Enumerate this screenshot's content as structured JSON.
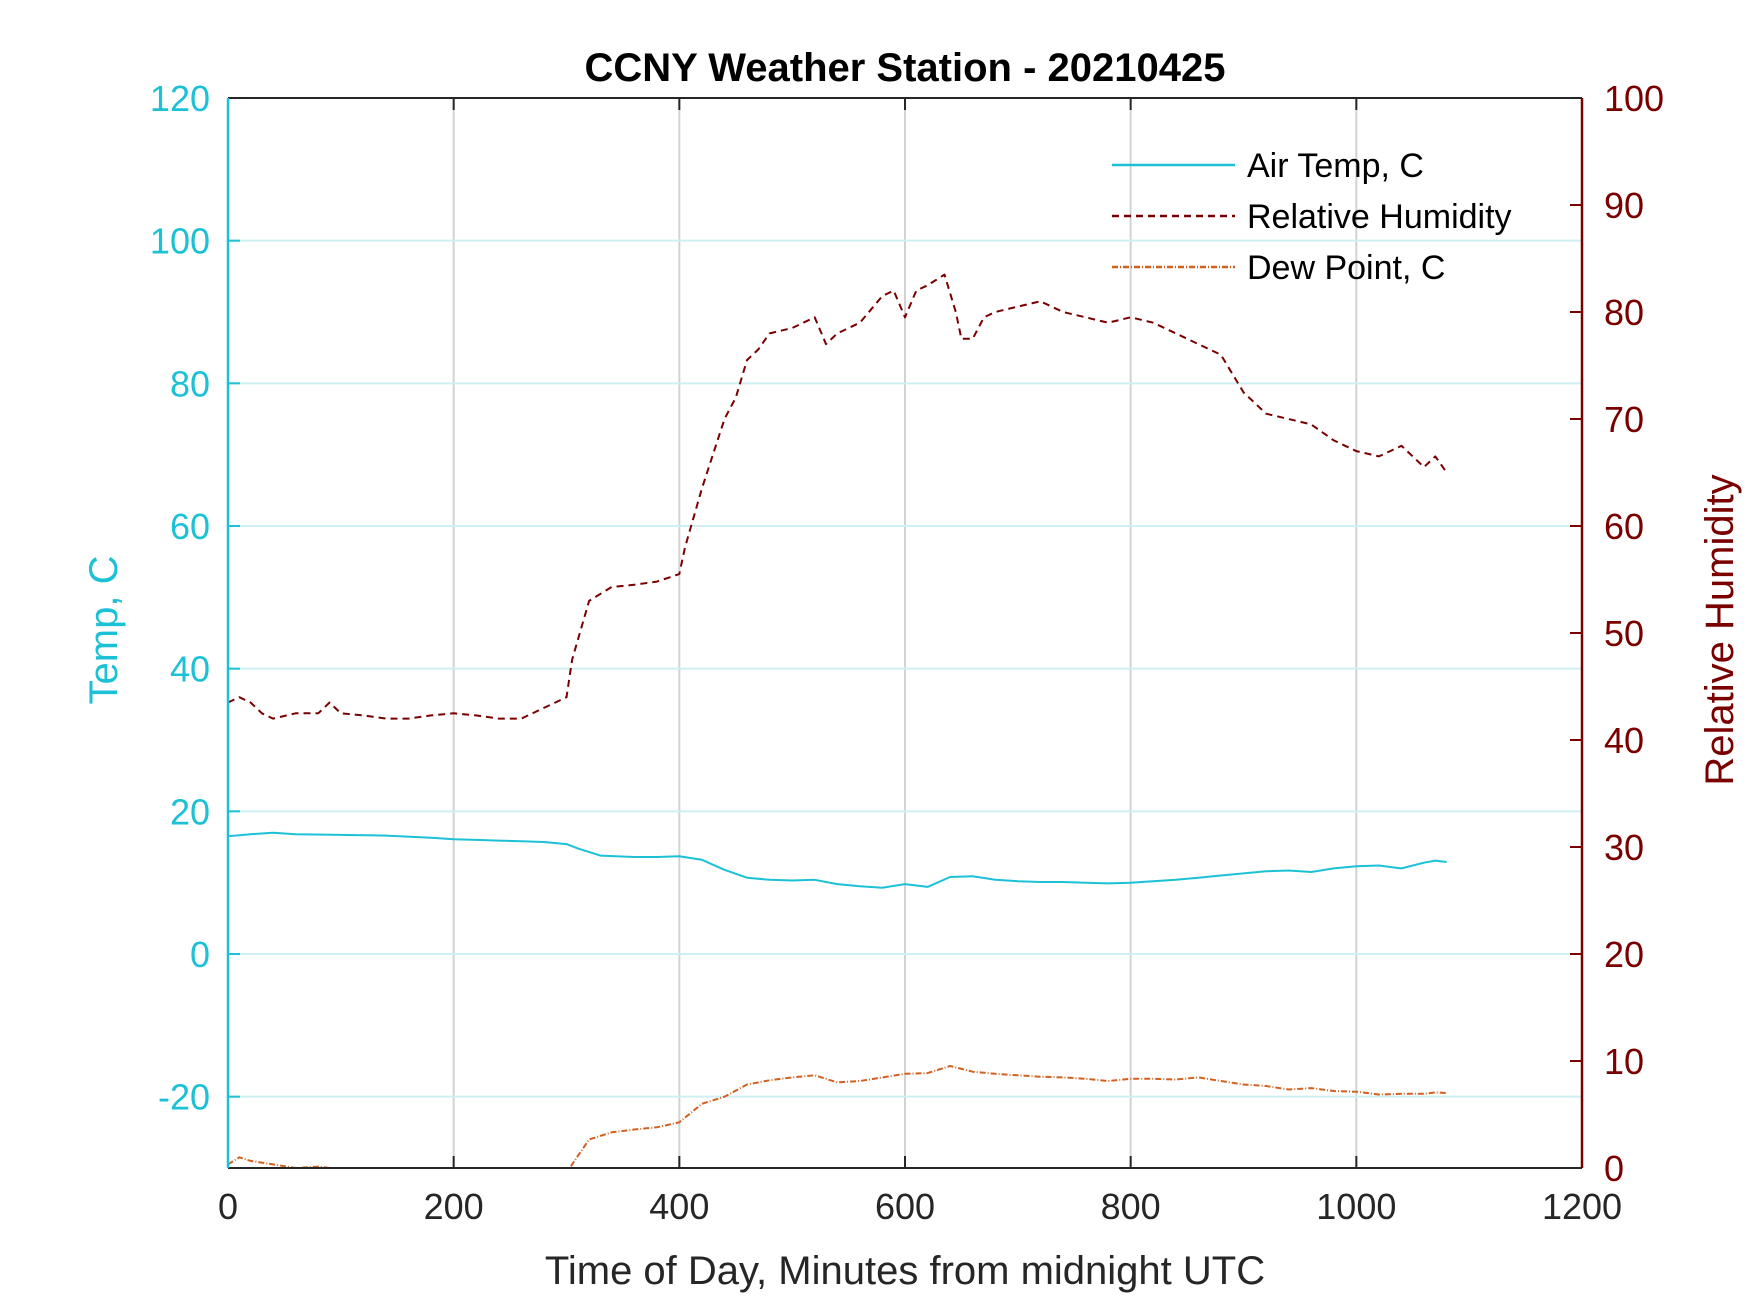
{
  "chart_data": {
    "type": "line",
    "title": "CCNY Weather Station - 20210425",
    "xlabel": "Time of Day, Minutes from midnight UTC",
    "ylabel_left": "Temp, C",
    "ylabel_right": "Relative Humidity",
    "xlim": [
      0,
      1200
    ],
    "ylim_left": [
      -30,
      120
    ],
    "ylim_right": [
      0,
      100
    ],
    "xticks": [
      "0",
      "200",
      "400",
      "600",
      "800",
      "1000",
      "1200"
    ],
    "yticks_left": [
      "120",
      "100",
      "80",
      "60",
      "40",
      "20",
      "0",
      "-20"
    ],
    "yticks_right": [
      "100",
      "90",
      "80",
      "70",
      "60",
      "50",
      "40",
      "30",
      "20",
      "10",
      "0"
    ],
    "grid": true,
    "legend_position": "top-right",
    "colors": {
      "left_axis": "#1cc1d6",
      "right_axis": "#7a0000",
      "air_temp": "#1cc1d6",
      "humidity": "#7a0000",
      "dew_point": "#d2611f",
      "grid": "#d3d3d3",
      "hgrid": "#cfeff4"
    },
    "series": [
      {
        "name": "Air Temp, C",
        "axis": "left",
        "style": "solid",
        "x": [
          0,
          20,
          40,
          60,
          100,
          140,
          180,
          200,
          220,
          240,
          260,
          280,
          300,
          310,
          330,
          360,
          380,
          400,
          420,
          440,
          460,
          480,
          500,
          520,
          540,
          560,
          580,
          600,
          620,
          640,
          660,
          680,
          700,
          720,
          740,
          760,
          780,
          800,
          820,
          840,
          860,
          880,
          900,
          920,
          940,
          960,
          980,
          1000,
          1020,
          1040,
          1060,
          1070,
          1080
        ],
        "y": [
          16.5,
          16.8,
          17.0,
          16.8,
          16.7,
          16.6,
          16.3,
          16.1,
          16.0,
          15.9,
          15.8,
          15.7,
          15.4,
          14.8,
          13.8,
          13.6,
          13.6,
          13.7,
          13.2,
          11.8,
          10.7,
          10.4,
          10.3,
          10.4,
          9.8,
          9.5,
          9.3,
          9.8,
          9.4,
          10.8,
          10.9,
          10.4,
          10.2,
          10.1,
          10.1,
          10.0,
          9.9,
          10.0,
          10.2,
          10.4,
          10.7,
          11.0,
          11.3,
          11.6,
          11.7,
          11.5,
          12.0,
          12.3,
          12.4,
          12.0,
          12.8,
          13.1,
          12.9
        ]
      },
      {
        "name": "Relative Humidity",
        "axis": "right",
        "style": "dashed",
        "x": [
          0,
          10,
          20,
          30,
          40,
          60,
          80,
          90,
          100,
          120,
          140,
          160,
          180,
          200,
          220,
          240,
          260,
          280,
          300,
          305,
          320,
          340,
          360,
          380,
          400,
          405,
          420,
          440,
          450,
          460,
          470,
          480,
          500,
          520,
          530,
          540,
          560,
          580,
          590,
          600,
          610,
          620,
          635,
          645,
          650,
          660,
          670,
          680,
          700,
          720,
          740,
          760,
          780,
          800,
          820,
          840,
          860,
          880,
          900,
          920,
          940,
          960,
          980,
          1000,
          1020,
          1040,
          1060,
          1070,
          1080
        ],
        "y": [
          43.5,
          44.0,
          43.5,
          42.5,
          42.0,
          42.5,
          42.5,
          43.5,
          42.5,
          42.3,
          42.0,
          42.0,
          42.3,
          42.5,
          42.3,
          42.0,
          42.0,
          43.0,
          44.0,
          47.5,
          53.0,
          54.3,
          54.5,
          54.8,
          55.5,
          58.0,
          63.5,
          70.0,
          72.0,
          75.5,
          76.5,
          78.0,
          78.5,
          79.5,
          77.0,
          78.0,
          79.0,
          81.5,
          82.0,
          79.5,
          82.0,
          82.5,
          83.5,
          80.0,
          77.5,
          77.5,
          79.5,
          80.0,
          80.5,
          81.0,
          80.0,
          79.5,
          79.0,
          79.5,
          79.0,
          78.0,
          77.0,
          76.0,
          72.5,
          70.5,
          70.0,
          69.5,
          68.0,
          67.0,
          66.5,
          67.5,
          65.5,
          66.5,
          65.0
        ]
      },
      {
        "name": "Dew Point, C",
        "axis": "left",
        "style": "dashdot",
        "x": [
          0,
          10,
          20,
          40,
          60,
          80,
          100,
          120,
          140,
          160,
          200,
          240,
          280,
          300,
          305,
          320,
          340,
          360,
          380,
          400,
          420,
          440,
          460,
          480,
          500,
          520,
          540,
          560,
          580,
          600,
          620,
          640,
          660,
          680,
          700,
          720,
          740,
          760,
          780,
          800,
          820,
          840,
          860,
          880,
          900,
          920,
          940,
          960,
          980,
          1000,
          1020,
          1040,
          1060,
          1070,
          1080
        ],
        "y": [
          -29.5,
          -28.5,
          -29.0,
          -29.5,
          -30.0,
          -29.8,
          -30.2,
          -30.5,
          -30.5,
          -31.0,
          -31.0,
          -31.0,
          -31.0,
          -31.0,
          -29.5,
          -26.0,
          -25.0,
          -24.6,
          -24.3,
          -23.6,
          -21.0,
          -20.0,
          -18.3,
          -17.7,
          -17.3,
          -17.0,
          -18.0,
          -17.8,
          -17.3,
          -16.8,
          -16.7,
          -15.7,
          -16.5,
          -16.8,
          -17.0,
          -17.2,
          -17.3,
          -17.5,
          -17.8,
          -17.5,
          -17.5,
          -17.6,
          -17.3,
          -17.8,
          -18.3,
          -18.5,
          -19.0,
          -18.8,
          -19.2,
          -19.3,
          -19.7,
          -19.6,
          -19.6,
          -19.4,
          -19.5
        ]
      }
    ]
  }
}
